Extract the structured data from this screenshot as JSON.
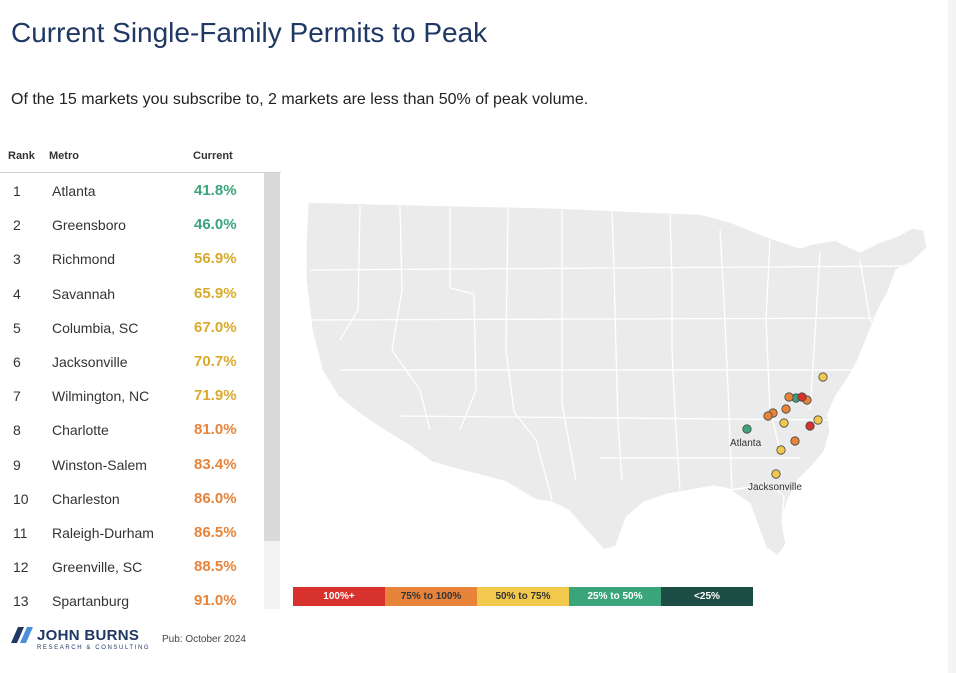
{
  "title": "Current Single-Family Permits to Peak",
  "subtitle": "Of the 15 markets you subscribe to, 2 markets are less than 50% of peak volume.",
  "table": {
    "headers": {
      "rank": "Rank",
      "metro": "Metro",
      "current": "Current"
    },
    "rows": [
      {
        "rank": "1",
        "metro": "Atlanta",
        "current": "41.8%",
        "color": "#3aa57b"
      },
      {
        "rank": "2",
        "metro": "Greensboro",
        "current": "46.0%",
        "color": "#3aa57b"
      },
      {
        "rank": "3",
        "metro": "Richmond",
        "current": "56.9%",
        "color": "#d9aa2a"
      },
      {
        "rank": "4",
        "metro": "Savannah",
        "current": "65.9%",
        "color": "#d9aa2a"
      },
      {
        "rank": "5",
        "metro": "Columbia, SC",
        "current": "67.0%",
        "color": "#d9aa2a"
      },
      {
        "rank": "6",
        "metro": "Jacksonville",
        "current": "70.7%",
        "color": "#d9aa2a"
      },
      {
        "rank": "7",
        "metro": "Wilmington, NC",
        "current": "71.9%",
        "color": "#d9aa2a"
      },
      {
        "rank": "8",
        "metro": "Charlotte",
        "current": "81.0%",
        "color": "#e8833a"
      },
      {
        "rank": "9",
        "metro": "Winston-Salem",
        "current": "83.4%",
        "color": "#e8833a"
      },
      {
        "rank": "10",
        "metro": "Charleston",
        "current": "86.0%",
        "color": "#e8833a"
      },
      {
        "rank": "11",
        "metro": "Raleigh-Durham",
        "current": "86.5%",
        "color": "#e8833a"
      },
      {
        "rank": "12",
        "metro": "Greenville, SC",
        "current": "88.5%",
        "color": "#e8833a"
      },
      {
        "rank": "13",
        "metro": "Spartanburg",
        "current": "91.0%",
        "color": "#e8833a"
      }
    ]
  },
  "map": {
    "labels": {
      "atlanta": "Atlanta",
      "jacksonville": "Jacksonville"
    },
    "markers": [
      {
        "name": "atlanta",
        "color": "#3aa57b"
      },
      {
        "name": "greensboro",
        "color": "#3aa57b"
      },
      {
        "name": "richmond",
        "color": "#f2c94c"
      },
      {
        "name": "savannah",
        "color": "#f2c94c"
      },
      {
        "name": "columbia",
        "color": "#f2c94c"
      },
      {
        "name": "jacksonville",
        "color": "#f2c94c"
      },
      {
        "name": "wilmington",
        "color": "#f2c94c"
      },
      {
        "name": "charlotte",
        "color": "#e8833a"
      },
      {
        "name": "winston-salem",
        "color": "#e8833a"
      },
      {
        "name": "charleston",
        "color": "#e8833a"
      },
      {
        "name": "raleigh",
        "color": "#e8833a"
      },
      {
        "name": "greenville",
        "color": "#e8833a"
      },
      {
        "name": "spartanburg",
        "color": "#e8833a"
      },
      {
        "name": "durham-red",
        "color": "#d7322e"
      },
      {
        "name": "myrtle-red",
        "color": "#d7322e"
      }
    ]
  },
  "legend": [
    {
      "label": "100%+",
      "bg": "#d7322e",
      "fg": "#ffffff"
    },
    {
      "label": "75% to 100%",
      "bg": "#e8833a",
      "fg": "#333333"
    },
    {
      "label": "50% to 75%",
      "bg": "#f2c94c",
      "fg": "#333333"
    },
    {
      "label": "25% to 50%",
      "bg": "#3aa57b",
      "fg": "#ffffff"
    },
    {
      "label": "<25%",
      "bg": "#1d4e45",
      "fg": "#ffffff"
    }
  ],
  "footer": {
    "logo": "JOHN BURNS",
    "logo_sub": "RESEARCH & CONSULTING",
    "pub": "Pub: October 2024"
  }
}
